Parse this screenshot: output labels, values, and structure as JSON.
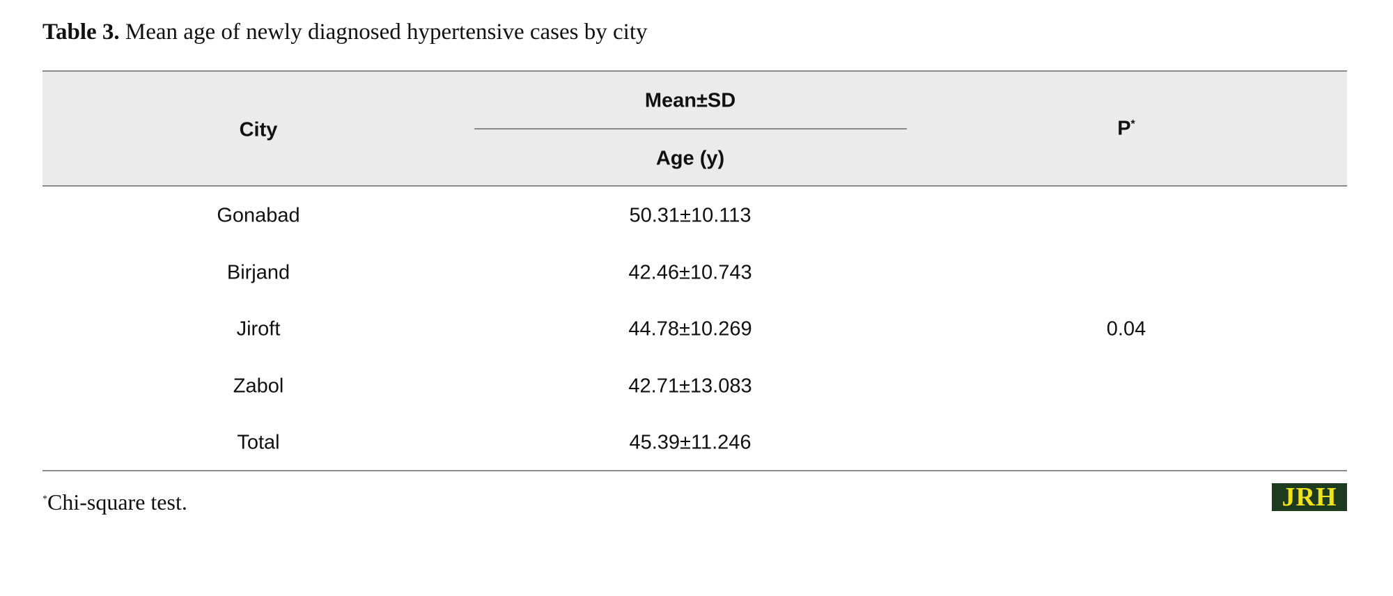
{
  "caption": {
    "label": "Table 3.",
    "text": "Mean age of newly diagnosed hypertensive cases by city"
  },
  "table": {
    "header": {
      "city": "City",
      "group": "Mean±SD",
      "age": "Age (y)",
      "p": "P",
      "p_mark": "*"
    },
    "rows": [
      [
        "Gonabad",
        "50.31±10.113"
      ],
      [
        "Birjand",
        "42.46±10.743"
      ],
      [
        "Jiroft",
        "44.78±10.269"
      ],
      [
        "Zabol",
        "42.71±13.083"
      ],
      [
        "Total",
        "45.39±11.246"
      ]
    ],
    "p_value": "0.04"
  },
  "footnote": {
    "mark": "*",
    "text": "Chi-square test."
  },
  "logo": "JRH"
}
